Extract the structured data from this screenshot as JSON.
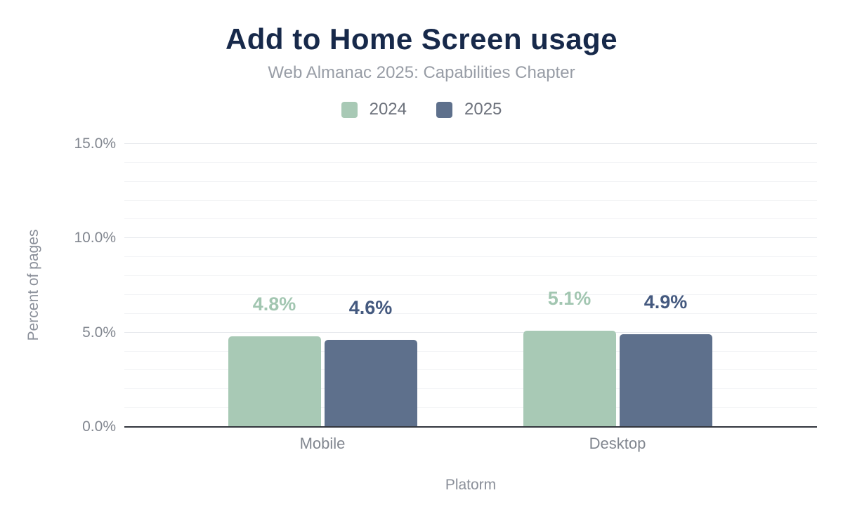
{
  "header": {
    "title": "Add to Home Screen usage",
    "subtitle": "Web Almanac 2025: Capabilities Chapter"
  },
  "legend": {
    "items": [
      {
        "label": "2024",
        "color": "#a8c9b5"
      },
      {
        "label": "2025",
        "color": "#5e708c"
      }
    ]
  },
  "chart_data": {
    "type": "bar",
    "title": "Add to Home Screen usage",
    "subtitle": "Web Almanac 2025: Capabilities Chapter",
    "categories": [
      "Mobile",
      "Desktop"
    ],
    "series": [
      {
        "name": "2024",
        "color": "#a8c9b5",
        "label_color": "#a2c6b1",
        "values": [
          4.8,
          5.1
        ],
        "value_labels": [
          "4.8%",
          "5.1%"
        ]
      },
      {
        "name": "2025",
        "color": "#5e708c",
        "label_color": "#44597f",
        "values": [
          4.6,
          4.9
        ],
        "value_labels": [
          "4.6%",
          "4.9%"
        ]
      }
    ],
    "xlabel": "Platorm",
    "ylabel": "Percent of pages",
    "ylim": [
      0,
      15
    ],
    "yticks": [
      0,
      5,
      10,
      15
    ],
    "ytick_labels": [
      "0.0%",
      "5.0%",
      "10.0%",
      "15.0%"
    ],
    "minor_grid_step": 1,
    "grid": true,
    "legend_position": "top"
  },
  "colors": {
    "title": "#17294a",
    "subtitle": "#989da6",
    "axis_text": "#81868f",
    "legend_text": "#6d727c",
    "axis_line": "#33363d",
    "grid_major": "#e7e9ed",
    "grid_minor": "#f3f4f6",
    "background": "#ffffff"
  }
}
